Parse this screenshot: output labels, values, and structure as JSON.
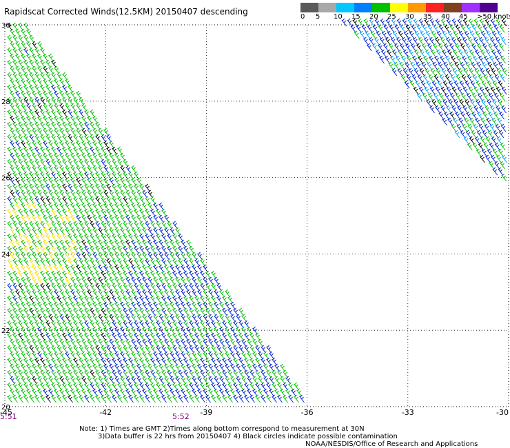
{
  "title": "Rapidscat Corrected Winds(12.5KM) 20150407 descending",
  "legend": {
    "labels": [
      "0",
      "5",
      "10",
      "15",
      "20",
      "25",
      "30",
      "35",
      "40",
      "45",
      ">50 knots"
    ],
    "colors": [
      "#5a5a5a",
      "#a8a8a8",
      "#00c8ff",
      "#0080ff",
      "#00c000",
      "#ffff00",
      "#ff9900",
      "#ff2020",
      "#804020",
      "#a030ff",
      "#500090"
    ]
  },
  "map": {
    "lon_ticks": [
      "-45",
      "-42",
      "-39",
      "-36",
      "-33",
      "-30"
    ],
    "lat_ticks": [
      "30",
      "28",
      "26",
      "24",
      "22",
      "20"
    ],
    "lon_range": [
      -45,
      -30
    ],
    "lat_range": [
      20,
      30
    ],
    "time_labels": [
      "5:51",
      "5:52"
    ],
    "time_label_color": "#800080",
    "barb_colors": {
      "light": "#00c000",
      "strong": "#0022cc",
      "weak": "#ffe000",
      "flag": "#000000",
      "cyan": "#00a0ff"
    }
  },
  "notes": {
    "line1": "Note: 1) Times are GMT 2)Times along bottom correspond to measurement at 30N",
    "line2": "3)Data buffer is 22 hrs from 20150407  4) Black circles indicate possible contamination",
    "line3": "NOAA/NESDIS/Office of Research and Applications"
  }
}
